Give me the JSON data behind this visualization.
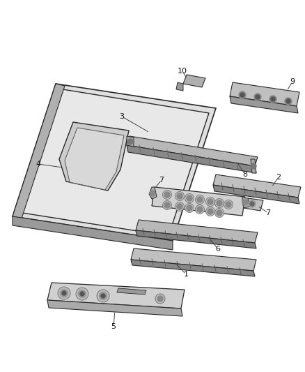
{
  "background_color": "#ffffff",
  "figure_width": 4.38,
  "figure_height": 5.33,
  "dpi": 100,
  "line_color": "#2a2a2a",
  "fill_light": "#e8e8e8",
  "fill_mid": "#c8c8c8",
  "fill_dark": "#888888",
  "fill_edge": "#555555"
}
